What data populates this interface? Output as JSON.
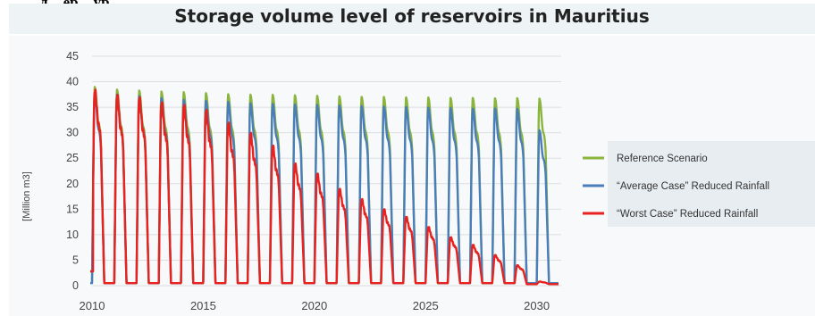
{
  "clipped_heading": "…д…ер…ур…",
  "chart_data": {
    "type": "line",
    "title": "Storage volume level of reservoirs in Mauritius",
    "ylabel": "[Million m3]",
    "xlabel": "",
    "xlim": [
      2010,
      2031.1
    ],
    "ylim": [
      0,
      45
    ],
    "xticks": [
      "2010",
      "2015",
      "2020",
      "2025",
      "2030"
    ],
    "yticks": [
      "0",
      "5",
      "10",
      "15",
      "20",
      "25",
      "30",
      "35",
      "40",
      "45"
    ],
    "grid": true,
    "legend_position": "right",
    "cycle": {
      "first_year": 2010,
      "last_year": 2030,
      "note": "each year the reservoir fills during the wet season and is drawn down to near empty"
    },
    "series": [
      {
        "name": "Reference Scenario",
        "color": "#8ab43c",
        "annual_peak": [
          39,
          38.5,
          38.3,
          38.1,
          38,
          37.8,
          37.6,
          37.5,
          37.5,
          37.4,
          37.3,
          37.2,
          37.1,
          37.1,
          37,
          37,
          36.9,
          36.9,
          36.8,
          36.8,
          36.7
        ],
        "annual_min": [
          0.5,
          0.5,
          0.5,
          0.5,
          0.5,
          0.5,
          0.5,
          0.5,
          0.5,
          0.5,
          0.5,
          0.5,
          0.5,
          0.5,
          0.5,
          0.5,
          0.5,
          0.5,
          0.5,
          0.5,
          0.5
        ]
      },
      {
        "name": "“Average Case” Reduced Rainfall",
        "color": "#4a7ebb",
        "annual_peak": [
          37.5,
          37.5,
          37.2,
          36.8,
          36.5,
          36.3,
          36.1,
          35.8,
          35.7,
          35.6,
          35.5,
          35.4,
          35.3,
          35.2,
          35.1,
          35,
          34.9,
          34.8,
          34.8,
          34.7,
          30.5
        ],
        "annual_min": [
          0.5,
          0.5,
          0.5,
          0.5,
          0.5,
          0.5,
          0.5,
          0.5,
          0.5,
          0.5,
          0.5,
          0.5,
          0.5,
          0.5,
          0.5,
          0.5,
          0.5,
          0.5,
          0.5,
          0.5,
          0.5
        ]
      },
      {
        "name": "“Worst Case” Reduced Rainfall",
        "color": "#e8221e",
        "annual_peak": [
          38.5,
          37.5,
          37,
          36,
          35.5,
          34.5,
          32,
          30,
          27.5,
          24,
          22,
          19,
          17,
          15,
          13.5,
          11.5,
          9.5,
          8,
          6,
          4,
          0.8
        ],
        "annual_min": [
          0.5,
          0.5,
          0.5,
          0.5,
          0.5,
          0.5,
          0.5,
          0.5,
          0.5,
          0.5,
          0.5,
          0.5,
          0.5,
          0.5,
          0.5,
          0.5,
          0.5,
          0.5,
          0.5,
          0.3,
          0.3
        ]
      }
    ]
  }
}
